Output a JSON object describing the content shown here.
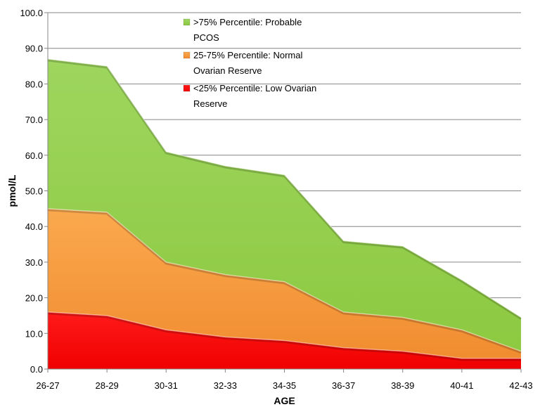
{
  "chart_data": {
    "type": "area",
    "stacked": false,
    "xlabel": "AGE",
    "ylabel": "pmol/L",
    "ylim": [
      0,
      100
    ],
    "y_ticks": [
      "0.0",
      "10.0",
      "20.0",
      "30.0",
      "40.0",
      "50.0",
      "60.0",
      "70.0",
      "80.0",
      "90.0",
      "100.0"
    ],
    "categories": [
      "26-27",
      "28-29",
      "30-31",
      "32-33",
      "34-35",
      "36-37",
      "38-39",
      "40-41",
      "42-43"
    ],
    "grid": true,
    "legend_position": "top-center",
    "series": [
      {
        "name": ">75% Percentile: Probable PCOS",
        "legend_lines": [
          ">75% Percentile: Probable",
          "PCOS"
        ],
        "color": "#92D050",
        "values": [
          87,
          85,
          61,
          57,
          54.5,
          36,
          34.5,
          25,
          14.5
        ]
      },
      {
        "name": "25-75% Percentile: Normal Ovarian Reserve",
        "legend_lines": [
          "25-75% Percentile: Normal",
          "Ovarian Reserve"
        ],
        "color": "#F79646",
        "values": [
          45,
          44,
          30,
          26.5,
          24.5,
          16,
          14.5,
          11,
          5
        ]
      },
      {
        "name": "<25% Percentile: Low Ovarian Reserve",
        "legend_lines": [
          "<25% Percentile: Low Ovarian",
          "Reserve"
        ],
        "color": "#FF0000",
        "values": [
          16,
          15,
          11,
          9,
          8,
          6,
          5,
          3,
          3
        ]
      }
    ]
  }
}
